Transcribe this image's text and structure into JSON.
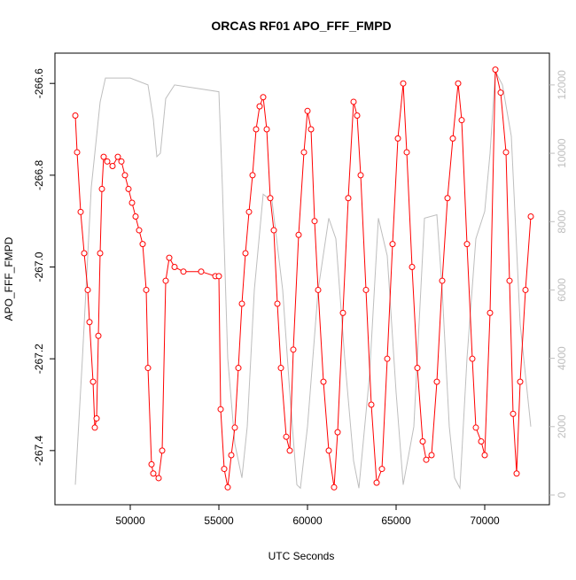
{
  "chart_data": {
    "type": "line",
    "title": "ORCAS RF01 APO_FFF_FMPD",
    "x_label": "UTC Seconds",
    "y_label": "APO_FFF_FMPD",
    "xlim": [
      45750,
      73650
    ],
    "ylim": [
      -267.518,
      -266.534
    ],
    "y2lim": [
      -285,
      12930
    ],
    "xticks": [
      50000,
      55000,
      60000,
      65000,
      70000
    ],
    "yticks": [
      -267.4,
      -267.2,
      {
        "value": -267,
        "label": "-267.0"
      },
      -266.8,
      -266.6
    ],
    "y2ticks": [
      0,
      2000,
      4000,
      6000,
      8000,
      10000,
      12000
    ],
    "series": [
      {
        "color": "#ff0000",
        "markers": true,
        "x": [
          46900,
          47000,
          47200,
          47400,
          47600,
          47700,
          47900,
          48000,
          48100,
          48200,
          48300,
          48400,
          48500,
          48700,
          49000,
          49300,
          49500,
          49700,
          49900,
          50100,
          50300,
          50500,
          50700,
          50900,
          51000,
          51200,
          51300,
          51600,
          51800,
          52000,
          52200,
          52500,
          53000,
          54000,
          54800,
          55000,
          55100,
          55300,
          55500,
          55700,
          55900,
          56100,
          56300,
          56500,
          56700,
          56900,
          57100,
          57300,
          57500,
          57700,
          57900,
          58100,
          58300,
          58500,
          58800,
          59000,
          59200,
          59500,
          59800,
          60000,
          60200,
          60400,
          60600,
          60900,
          61200,
          61500,
          61700,
          62000,
          62300,
          62600,
          62800,
          63000,
          63300,
          63600,
          63900,
          64200,
          64500,
          64800,
          65100,
          65400,
          65600,
          65900,
          66200,
          66500,
          66700,
          67000,
          67300,
          67600,
          67900,
          68200,
          68500,
          68700,
          69000,
          69300,
          69500,
          69800,
          70000,
          70300,
          70600,
          70900,
          71200,
          71400,
          71600,
          71800,
          72000,
          72300,
          72600
        ],
        "values": [
          -266.67,
          -266.75,
          -266.88,
          -266.97,
          -267.05,
          -267.12,
          -267.25,
          -267.35,
          -267.33,
          -267.15,
          -266.97,
          -266.83,
          -266.76,
          -266.77,
          -266.78,
          -266.76,
          -266.77,
          -266.8,
          -266.83,
          -266.86,
          -266.89,
          -266.92,
          -266.95,
          -267.05,
          -267.22,
          -267.43,
          -267.45,
          -267.46,
          -267.4,
          -267.03,
          -266.98,
          -267,
          -267.01,
          -267.01,
          -267.02,
          -267.02,
          -267.31,
          -267.44,
          -267.48,
          -267.41,
          -267.35,
          -267.22,
          -267.08,
          -266.97,
          -266.88,
          -266.8,
          -266.7,
          -266.65,
          -266.63,
          -266.7,
          -266.85,
          -266.92,
          -267.08,
          -267.22,
          -267.37,
          -267.4,
          -267.18,
          -266.93,
          -266.75,
          -266.66,
          -266.7,
          -266.9,
          -267.05,
          -267.25,
          -267.4,
          -267.48,
          -267.36,
          -267.1,
          -266.85,
          -266.64,
          -266.67,
          -266.8,
          -267.05,
          -267.3,
          -267.47,
          -267.44,
          -267.2,
          -266.95,
          -266.72,
          -266.6,
          -266.75,
          -267,
          -267.22,
          -267.38,
          -267.42,
          -267.41,
          -267.25,
          -267.03,
          -266.85,
          -266.72,
          -266.6,
          -266.68,
          -266.95,
          -267.2,
          -267.35,
          -267.38,
          -267.41,
          -267.1,
          -266.57,
          -266.62,
          -266.75,
          -267.03,
          -267.32,
          -267.45,
          -267.25,
          -267.05,
          -266.89
        ]
      },
      {
        "color": "#bebebe",
        "axis": "y2",
        "markers": false,
        "x": [
          46900,
          47300,
          47800,
          48300,
          48600,
          50000,
          51000,
          51300,
          51500,
          51700,
          52000,
          52500,
          55000,
          55200,
          55500,
          55900,
          56300,
          56600,
          57000,
          57500,
          58000,
          58600,
          59000,
          59400,
          59600,
          60000,
          60600,
          61200,
          61600,
          62100,
          62600,
          62900,
          63500,
          64000,
          64500,
          65000,
          65400,
          66000,
          66600,
          67300,
          67600,
          68000,
          68300,
          68600,
          69000,
          69500,
          70000,
          70300,
          70600,
          71000,
          71500,
          72000,
          72600
        ],
        "values": [
          300,
          4000,
          9000,
          11500,
          12200,
          12200,
          12000,
          11000,
          9900,
          10000,
          11600,
          12000,
          11800,
          9000,
          4000,
          1500,
          500,
          2000,
          6000,
          8800,
          8600,
          6000,
          3000,
          300,
          200,
          2000,
          6000,
          8100,
          7500,
          4000,
          1000,
          200,
          3500,
          8100,
          7000,
          3000,
          300,
          2000,
          8100,
          8200,
          6000,
          2000,
          500,
          200,
          4000,
          7500,
          8300,
          10000,
          12400,
          12000,
          10500,
          5000,
          2000
        ]
      }
    ]
  }
}
